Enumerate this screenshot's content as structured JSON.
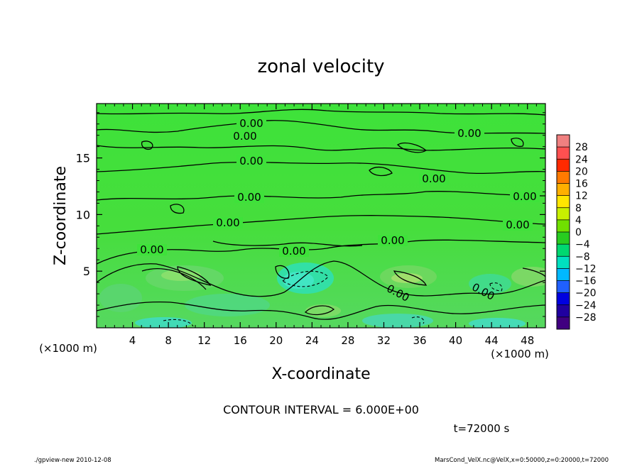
{
  "chart_data": {
    "type": "heatmap",
    "title": "zonal velocity",
    "xlabel": "X-coordinate",
    "ylabel": "Z-coordinate",
    "x_unit_left": "(×1000 m)",
    "x_unit_right": "(×1000 m)",
    "xlim": [
      0,
      50
    ],
    "ylim": [
      0,
      19.8
    ],
    "x_ticks": [
      "4",
      "8",
      "12",
      "16",
      "20",
      "24",
      "28",
      "32",
      "36",
      "40",
      "44",
      "48"
    ],
    "x_tick_values": [
      4,
      8,
      12,
      16,
      20,
      24,
      28,
      32,
      36,
      40,
      44,
      48
    ],
    "y_ticks": [
      "5",
      "10",
      "15"
    ],
    "y_tick_values": [
      5,
      10,
      15
    ],
    "contour_label": "0.00",
    "contour_label_count": 15,
    "contour_interval_text": "CONTOUR INTERVAL = 6.000E+00",
    "time_text": "t=72000 s",
    "colorbar": {
      "labels": [
        "28",
        "24",
        "20",
        "16",
        "12",
        "8",
        "4",
        "0",
        "−4",
        "−8",
        "−12",
        "−16",
        "−20",
        "−24",
        "−28"
      ],
      "colors": [
        "#f08080",
        "#ff5050",
        "#ff2a00",
        "#ff7a00",
        "#ffb000",
        "#ffe600",
        "#c8f000",
        "#70e000",
        "#28cc20",
        "#00d870",
        "#00e0c0",
        "#00b8ff",
        "#2060ff",
        "#0000e0",
        "#2000a0",
        "#400080"
      ]
    },
    "field_color": "#3ee03a"
  },
  "footer": {
    "left": "./gpview-new  2010-12-08",
    "right": "MarsCond_VelX.nc@VelX,x=0:50000,z=0:20000,t=72000"
  }
}
